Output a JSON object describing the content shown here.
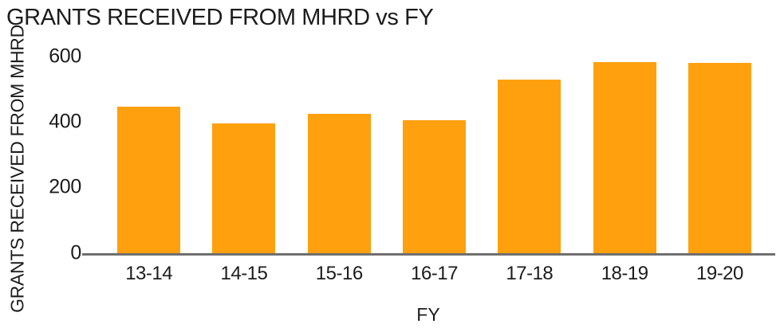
{
  "chart_data": {
    "type": "bar",
    "title": "GRANTS RECEIVED FROM MHRD vs FY",
    "xlabel": "FY",
    "ylabel": "GRANTS RECEIVED FROM MHRD",
    "categories": [
      "13-14",
      "14-15",
      "15-16",
      "16-17",
      "17-18",
      "18-19",
      "19-20"
    ],
    "values": [
      450,
      398,
      427,
      407,
      533,
      586,
      582
    ],
    "ylim": [
      0,
      600
    ],
    "yticks": [
      0,
      200,
      400,
      600
    ],
    "grid": false,
    "legend": false,
    "colors": {
      "bar": "#FFA00F",
      "axis_line": "#6f6f6f",
      "text": "#1c1c1c",
      "background": "#ffffff"
    }
  }
}
